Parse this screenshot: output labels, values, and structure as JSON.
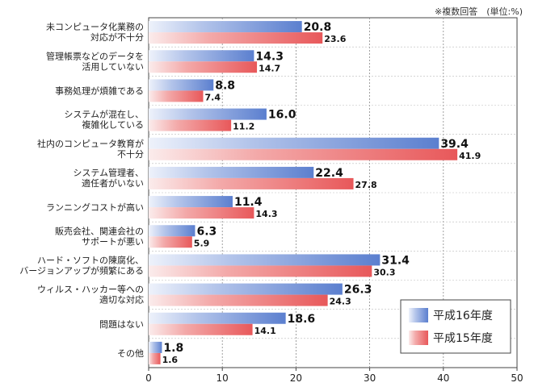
{
  "note": "※複数回答　(単位:%)",
  "chart_data": {
    "type": "bar",
    "orientation": "horizontal",
    "categories": [
      [
        "未コンピュータ化業務の",
        "対応が不十分"
      ],
      [
        "管理帳票などのデータを",
        "活用していない"
      ],
      [
        "事務処理が煩雑である"
      ],
      [
        "システムが混在し、",
        "複雑化している"
      ],
      [
        "社内のコンピュータ教育が",
        "不十分"
      ],
      [
        "システム管理者、",
        "適任者がいない"
      ],
      [
        "ランニングコストが高い"
      ],
      [
        "販売会社、関連会社の",
        "サポートが悪い"
      ],
      [
        "ハード・ソフトの陳腐化、",
        "バージョンアップが頻繁にある"
      ],
      [
        "ウィルス・ハッカー等への",
        "適切な対応"
      ],
      [
        "問題はない"
      ],
      [
        "その他"
      ]
    ],
    "series": [
      {
        "name": "平成16年度",
        "values": [
          20.8,
          14.3,
          8.8,
          16.0,
          39.4,
          22.4,
          11.4,
          6.3,
          31.4,
          26.3,
          18.6,
          1.8
        ],
        "color": "#5b7fcf"
      },
      {
        "name": "平成15年度",
        "values": [
          23.6,
          14.7,
          7.4,
          11.2,
          41.9,
          27.8,
          14.3,
          5.9,
          30.3,
          24.3,
          14.1,
          1.6
        ],
        "color": "#e8585a"
      }
    ],
    "xlim": [
      0,
      50
    ],
    "xticks": [
      0,
      10,
      20,
      30,
      40,
      50
    ],
    "grid": "vertical-dotted",
    "legend_position": "bottom-right"
  }
}
